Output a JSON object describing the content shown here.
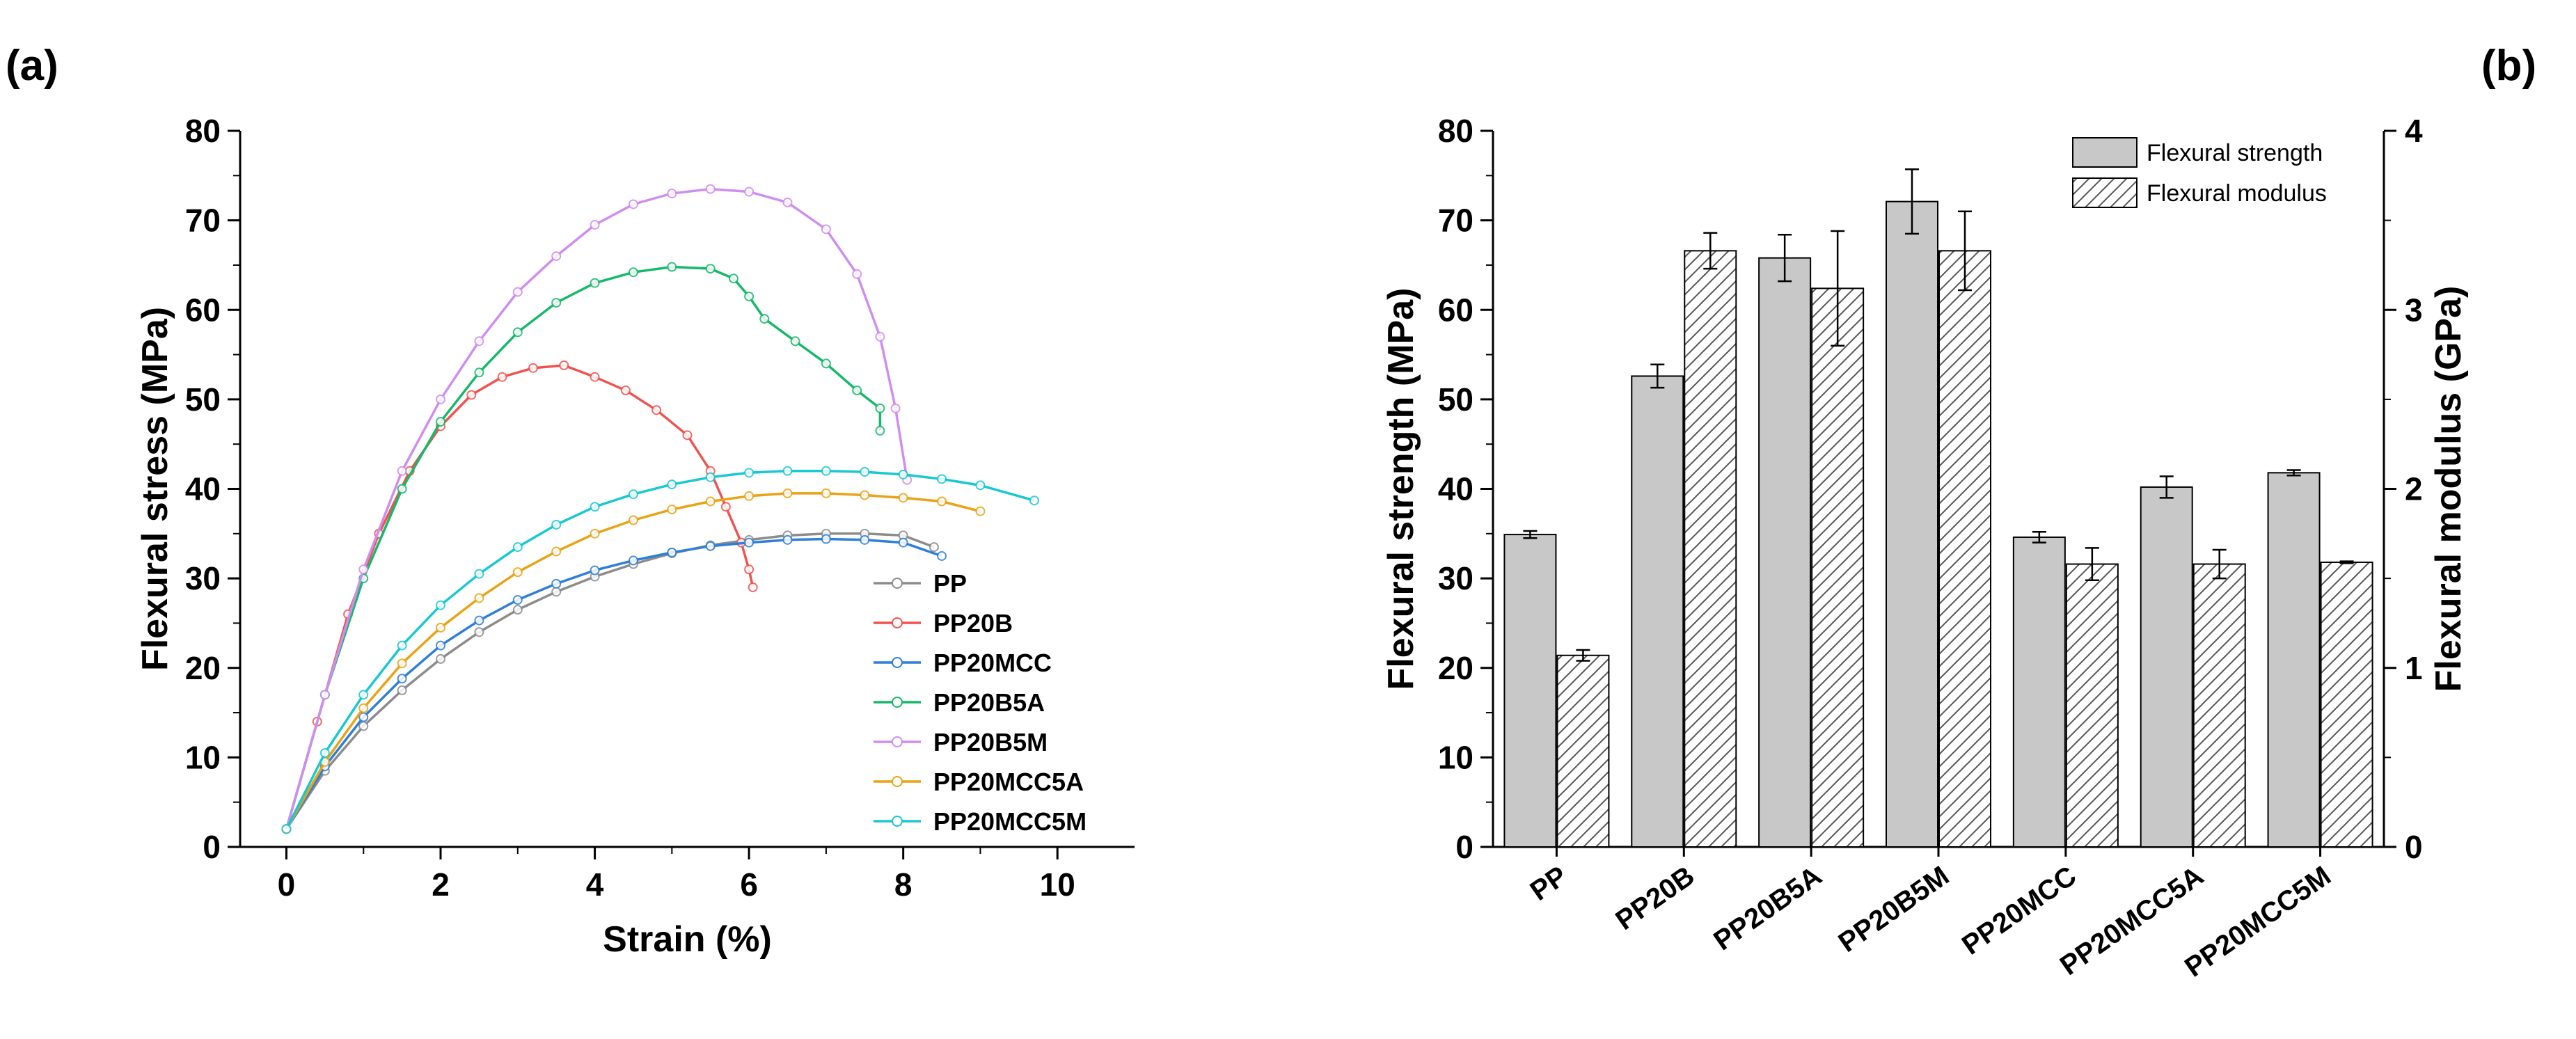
{
  "panel_labels": {
    "a": "(a)",
    "b": "(b)"
  },
  "colors": {
    "PP": "#8c8c8c",
    "PP20B": "#f0534f",
    "PP20MCC": "#2f7fd8",
    "PP20B5A": "#16b86a",
    "PP20B5M": "#cf8df0",
    "PP20MCC5A": "#e8a317",
    "PP20MCC5M": "#19c8d0",
    "bar_fill": "#c8c8c8",
    "axis": "#000000"
  },
  "chart_data": [
    {
      "type": "line",
      "title": "",
      "xlabel": "Strain (%)",
      "ylabel": "Flexural stress (MPa)",
      "xlim": [
        -0.6,
        11
      ],
      "ylim": [
        0,
        80
      ],
      "xticks": [
        "0",
        "2",
        "4",
        "6",
        "8",
        "10"
      ],
      "yticks": [
        "0",
        "10",
        "20",
        "30",
        "40",
        "50",
        "60",
        "70",
        "80"
      ],
      "legend": "bottom-right",
      "series": [
        {
          "name": "PP",
          "x": [
            0,
            0.5,
            1,
            1.5,
            2,
            2.5,
            3,
            3.5,
            4,
            4.5,
            5,
            5.5,
            6,
            6.5,
            7,
            7.5,
            8,
            8.4
          ],
          "y": [
            2,
            8.5,
            13.5,
            17.5,
            21,
            24,
            26.5,
            28.5,
            30.2,
            31.6,
            32.8,
            33.7,
            34.3,
            34.8,
            35,
            35,
            34.8,
            33.5
          ]
        },
        {
          "name": "PP20B",
          "x": [
            0,
            0.4,
            0.8,
            1.2,
            1.6,
            2,
            2.4,
            2.8,
            3.2,
            3.6,
            4,
            4.4,
            4.8,
            5.2,
            5.5,
            5.7,
            5.9,
            6.0,
            6.05
          ],
          "y": [
            2,
            14,
            26,
            35,
            42,
            47,
            50.5,
            52.5,
            53.5,
            53.8,
            52.5,
            51,
            48.8,
            46,
            42,
            38,
            34,
            31,
            29
          ]
        },
        {
          "name": "PP20MCC",
          "x": [
            0,
            0.5,
            1,
            1.5,
            2,
            2.5,
            3,
            3.5,
            4,
            4.5,
            5,
            5.5,
            6,
            6.5,
            7,
            7.5,
            8,
            8.5
          ],
          "y": [
            2,
            9,
            14.5,
            18.8,
            22.5,
            25.3,
            27.6,
            29.4,
            30.9,
            32,
            32.9,
            33.6,
            34,
            34.3,
            34.4,
            34.3,
            34,
            32.5
          ]
        },
        {
          "name": "PP20B5A",
          "x": [
            0,
            0.5,
            1,
            1.5,
            2,
            2.5,
            3,
            3.5,
            4,
            4.5,
            5,
            5.5,
            5.8,
            6,
            6.2,
            6.6,
            7,
            7.4,
            7.7,
            7.7
          ],
          "y": [
            2,
            17,
            30,
            40,
            47.5,
            53,
            57.5,
            60.8,
            63,
            64.2,
            64.8,
            64.6,
            63.5,
            61.5,
            59,
            56.5,
            54,
            51,
            49,
            46.5
          ]
        },
        {
          "name": "PP20B5M",
          "x": [
            0,
            0.5,
            1,
            1.5,
            2,
            2.5,
            3,
            3.5,
            4,
            4.5,
            5,
            5.5,
            6,
            6.5,
            7,
            7.4,
            7.7,
            7.9,
            8.05
          ],
          "y": [
            2,
            17,
            31,
            42,
            50,
            56.5,
            62,
            66,
            69.5,
            71.8,
            73,
            73.5,
            73.2,
            72,
            69,
            64,
            57,
            49,
            41
          ]
        },
        {
          "name": "PP20MCC5A",
          "x": [
            0,
            0.5,
            1,
            1.5,
            2,
            2.5,
            3,
            3.5,
            4,
            4.5,
            5,
            5.5,
            6,
            6.5,
            7,
            7.5,
            8,
            8.5,
            9
          ],
          "y": [
            2,
            9.5,
            15.5,
            20.5,
            24.5,
            27.8,
            30.7,
            33,
            35,
            36.5,
            37.7,
            38.6,
            39.2,
            39.5,
            39.5,
            39.3,
            39,
            38.6,
            37.5
          ]
        },
        {
          "name": "PP20MCC5M",
          "x": [
            0,
            0.5,
            1,
            1.5,
            2,
            2.5,
            3,
            3.5,
            4,
            4.5,
            5,
            5.5,
            6,
            6.5,
            7,
            7.5,
            8,
            8.5,
            9,
            9.7
          ],
          "y": [
            2,
            10.5,
            17,
            22.5,
            27,
            30.5,
            33.5,
            36,
            38,
            39.4,
            40.5,
            41.3,
            41.8,
            42,
            42,
            41.9,
            41.6,
            41.1,
            40.4,
            38.7
          ]
        }
      ]
    },
    {
      "type": "bar",
      "title": "",
      "xlabel": "",
      "ylabel": "Flexural strength (MPa)",
      "y2label": "Flexural modulus (GPa)",
      "ylim": [
        0,
        80
      ],
      "y2lim": [
        0,
        4
      ],
      "yticks": [
        "0",
        "10",
        "20",
        "30",
        "40",
        "50",
        "60",
        "70",
        "80"
      ],
      "y2ticks": [
        "0",
        "1",
        "2",
        "3",
        "4"
      ],
      "legend": "top-right",
      "categories": [
        "PP",
        "PP20B",
        "PP20B5A",
        "PP20B5M",
        "PP20MCC",
        "PP20MCC5A",
        "PP20MCC5M"
      ],
      "series": [
        {
          "name": "Flexural strength",
          "axis": "left",
          "pattern": "solid",
          "values": [
            34.9,
            52.6,
            65.8,
            72.1,
            34.6,
            40.2,
            41.8
          ],
          "errors": [
            0.4,
            1.3,
            2.6,
            3.6,
            0.6,
            1.2,
            0.3
          ]
        },
        {
          "name": "Flexural modulus",
          "axis": "right",
          "pattern": "hatched",
          "values": [
            1.07,
            3.33,
            3.12,
            3.33,
            1.58,
            1.58,
            1.59
          ],
          "errors": [
            0.03,
            0.1,
            0.32,
            0.22,
            0.09,
            0.08,
            0.005
          ]
        }
      ]
    }
  ]
}
